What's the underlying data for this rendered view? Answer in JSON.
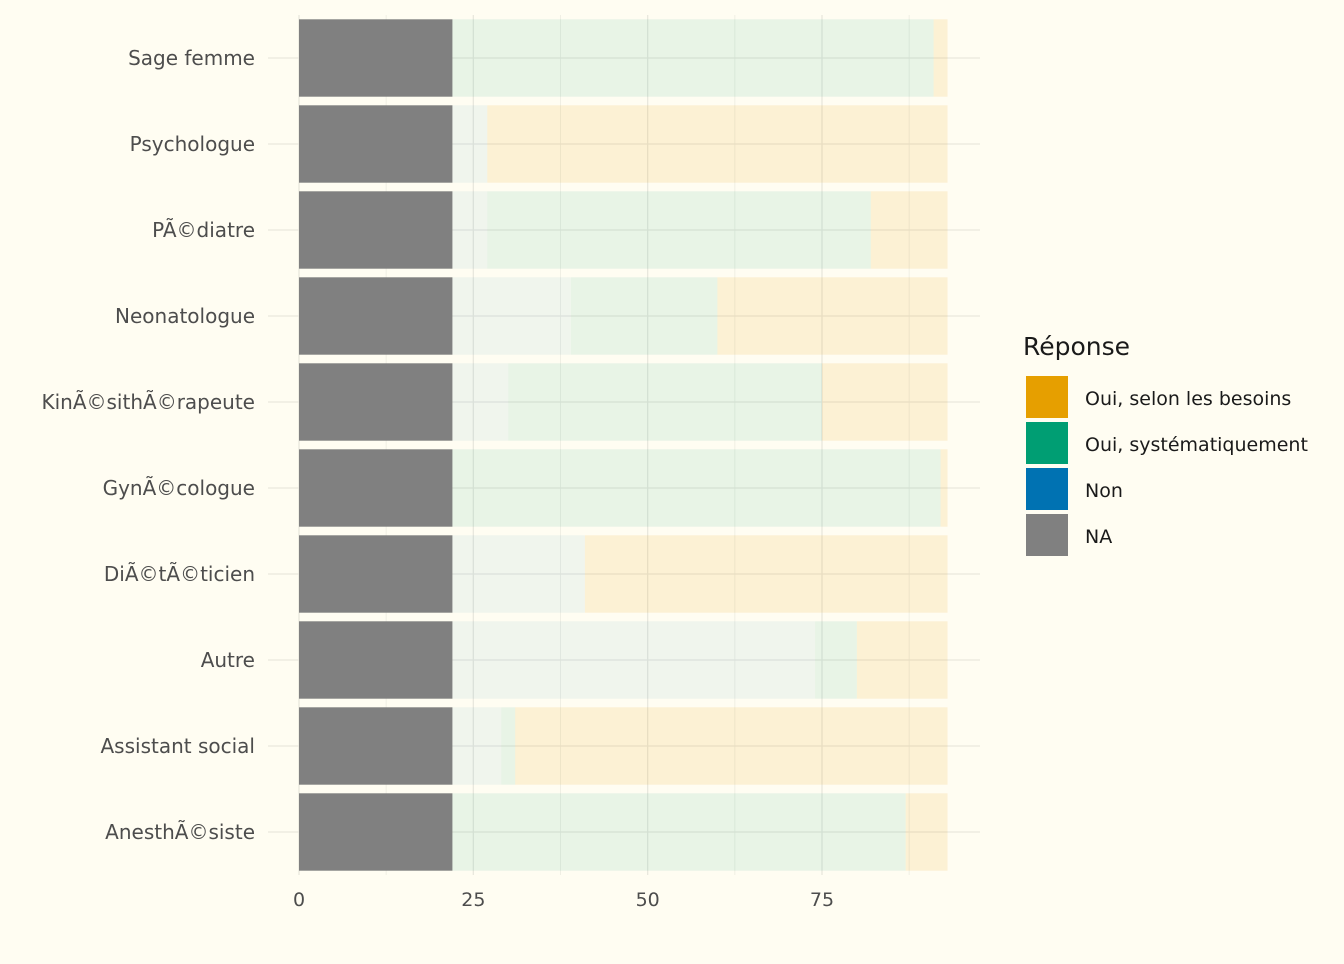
{
  "chart_data": {
    "type": "bar",
    "orientation": "horizontal",
    "stacked": true,
    "title": "",
    "xlabel": "",
    "ylabel": "",
    "xlim": [
      0,
      97
    ],
    "x_ticks": [
      0,
      25,
      50,
      75
    ],
    "grid": true,
    "legend_position": "right",
    "legend_title": "Réponse",
    "categories": [
      "Anesthésiste",
      "Assistant social",
      "Autre",
      "DiÃ©tÃ©ticien",
      "GynÃ©cologue",
      "KinÃ©sithÃ©rapeute",
      "Neonatologue",
      "PÃ©diatre",
      "Psychologue",
      "Sage femme"
    ],
    "category_labels": [
      "AnesthÃ©siste",
      "Assistant social",
      "Autre",
      "DiÃ©tÃ©ticien",
      "GynÃ©cologue",
      "KinÃ©sithÃ©rapeute",
      "Neonatologue",
      "PÃ©diatre",
      "Psychologue",
      "Sage femme"
    ],
    "series": [
      {
        "name": "NA",
        "color": "#808080",
        "opacity": 1,
        "values": [
          22,
          22,
          22,
          22,
          22,
          22,
          22,
          22,
          22,
          22
        ]
      },
      {
        "name": "Non",
        "color": "#0072b2",
        "opacity": 0.06,
        "values": [
          0,
          7,
          52,
          19,
          0,
          8,
          17,
          5,
          5,
          0
        ]
      },
      {
        "name": "Oui, systématiquement",
        "color": "#009e73",
        "opacity": 0.09,
        "values": [
          65,
          2,
          6,
          0,
          70,
          45,
          21,
          55,
          0,
          69
        ]
      },
      {
        "name": "Oui, selon les besoins",
        "color": "#e69f00",
        "opacity": 0.12,
        "values": [
          6,
          62,
          13,
          52,
          1,
          18,
          33,
          11,
          66,
          2
        ]
      }
    ],
    "legend_order": [
      "Oui, selon les besoins",
      "Oui, systématiquement",
      "Non",
      "NA"
    ]
  }
}
